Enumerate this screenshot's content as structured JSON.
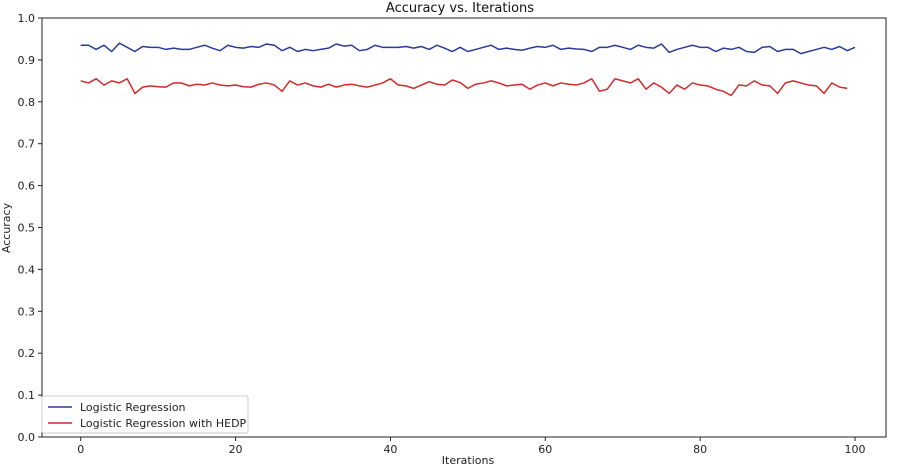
{
  "chart_data": {
    "type": "line",
    "title": "Accuracy vs. Iterations",
    "xlabel": "Iterations",
    "ylabel": "Accuracy",
    "xlim": [
      -5,
      104
    ],
    "ylim": [
      0.0,
      1.0
    ],
    "xticks": [
      0,
      20,
      40,
      60,
      80,
      100
    ],
    "xtick_labels": [
      "0",
      "20",
      "40",
      "60",
      "80",
      "100"
    ],
    "yticks": [
      0.0,
      0.1,
      0.2,
      0.3,
      0.4,
      0.5,
      0.6,
      0.7,
      0.8,
      0.9,
      1.0
    ],
    "ytick_labels": [
      "0.0",
      "0.1",
      "0.2",
      "0.3",
      "0.4",
      "0.5",
      "0.6",
      "0.7",
      "0.8",
      "0.9",
      "1.0"
    ],
    "grid": false,
    "legend_position": "lower-left",
    "series": [
      {
        "name": "Logistic Regression",
        "color": "#2b3a99",
        "values": [
          0.935,
          0.935,
          0.925,
          0.935,
          0.92,
          0.94,
          0.93,
          0.92,
          0.932,
          0.93,
          0.93,
          0.925,
          0.928,
          0.925,
          0.925,
          0.93,
          0.935,
          0.928,
          0.922,
          0.935,
          0.93,
          0.928,
          0.932,
          0.93,
          0.938,
          0.935,
          0.922,
          0.93,
          0.92,
          0.925,
          0.922,
          0.925,
          0.928,
          0.938,
          0.933,
          0.935,
          0.922,
          0.925,
          0.935,
          0.93,
          0.93,
          0.93,
          0.932,
          0.928,
          0.932,
          0.925,
          0.935,
          0.928,
          0.92,
          0.93,
          0.92,
          0.925,
          0.93,
          0.935,
          0.925,
          0.928,
          0.925,
          0.923,
          0.928,
          0.932,
          0.93,
          0.935,
          0.925,
          0.928,
          0.926,
          0.925,
          0.92,
          0.93,
          0.93,
          0.935,
          0.93,
          0.925,
          0.935,
          0.93,
          0.928,
          0.938,
          0.918,
          0.925,
          0.93,
          0.935,
          0.93,
          0.93,
          0.92,
          0.928,
          0.925,
          0.93,
          0.92,
          0.918,
          0.93,
          0.932,
          0.92,
          0.925,
          0.925,
          0.915,
          0.92,
          0.925,
          0.93,
          0.925,
          0.932,
          0.922,
          0.93
        ]
      },
      {
        "name": "Logistic Regression with HEDP",
        "color": "#d42a2a",
        "values": [
          0.85,
          0.845,
          0.855,
          0.84,
          0.85,
          0.845,
          0.855,
          0.82,
          0.835,
          0.838,
          0.836,
          0.835,
          0.845,
          0.845,
          0.838,
          0.842,
          0.84,
          0.845,
          0.84,
          0.838,
          0.84,
          0.836,
          0.835,
          0.842,
          0.845,
          0.84,
          0.825,
          0.85,
          0.84,
          0.845,
          0.838,
          0.835,
          0.842,
          0.835,
          0.84,
          0.842,
          0.838,
          0.835,
          0.84,
          0.845,
          0.855,
          0.84,
          0.838,
          0.832,
          0.84,
          0.848,
          0.842,
          0.84,
          0.852,
          0.846,
          0.832,
          0.842,
          0.845,
          0.85,
          0.845,
          0.838,
          0.84,
          0.842,
          0.83,
          0.84,
          0.845,
          0.838,
          0.845,
          0.842,
          0.84,
          0.845,
          0.855,
          0.825,
          0.83,
          0.855,
          0.85,
          0.845,
          0.855,
          0.83,
          0.845,
          0.835,
          0.82,
          0.84,
          0.83,
          0.845,
          0.84,
          0.838,
          0.83,
          0.825,
          0.815,
          0.84,
          0.838,
          0.85,
          0.84,
          0.838,
          0.82,
          0.845,
          0.85,
          0.845,
          0.84,
          0.838,
          0.82,
          0.845,
          0.835,
          0.832
        ]
      }
    ]
  }
}
